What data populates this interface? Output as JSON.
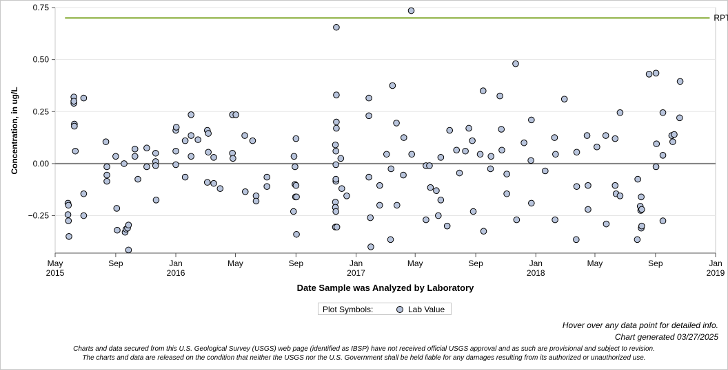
{
  "chart_data": {
    "type": "scatter",
    "xlabel": "Date Sample was Analyzed by Laboratory",
    "ylabel": "Concentration, in ug/L",
    "ylim": [
      -0.43,
      0.75
    ],
    "xlim": [
      "2015-05-01",
      "2019-01-01"
    ],
    "grid": true,
    "x_ticks": [
      {
        "date": "2015-05-01",
        "label": "May",
        "year": "2015"
      },
      {
        "date": "2015-09-01",
        "label": "Sep",
        "year": ""
      },
      {
        "date": "2016-01-01",
        "label": "Jan",
        "year": "2016"
      },
      {
        "date": "2016-05-01",
        "label": "May",
        "year": ""
      },
      {
        "date": "2016-09-01",
        "label": "Sep",
        "year": ""
      },
      {
        "date": "2017-01-01",
        "label": "Jan",
        "year": "2017"
      },
      {
        "date": "2017-05-01",
        "label": "May",
        "year": ""
      },
      {
        "date": "2017-09-01",
        "label": "Sep",
        "year": ""
      },
      {
        "date": "2018-01-01",
        "label": "Jan",
        "year": "2018"
      },
      {
        "date": "2018-05-01",
        "label": "May",
        "year": ""
      },
      {
        "date": "2018-09-01",
        "label": "Sep",
        "year": ""
      },
      {
        "date": "2019-01-01",
        "label": "Jan",
        "year": "2019"
      }
    ],
    "y_ticks": [
      {
        "value": 0.75,
        "label": "0.75"
      },
      {
        "value": 0.5,
        "label": "0.50"
      },
      {
        "value": 0.25,
        "label": "0.25"
      },
      {
        "value": 0.0,
        "label": "0.00"
      },
      {
        "value": -0.25,
        "label": "−0.25"
      }
    ],
    "reference_line": {
      "label": "RPT Level",
      "value": 0.7,
      "x_start": "2015-05-21",
      "x_end": "2018-12-20",
      "color": "#8db040"
    },
    "zero_line": 0.0,
    "series": [
      {
        "name": "Lab Value",
        "color": "#b8c4dc",
        "points": [
          [
            "2015-05-27",
            -0.19
          ],
          [
            "2015-05-27",
            -0.245
          ],
          [
            "2015-05-28",
            -0.275
          ],
          [
            "2015-05-28",
            -0.2
          ],
          [
            "2015-05-29",
            -0.35
          ],
          [
            "2015-06-08",
            0.32
          ],
          [
            "2015-06-08",
            0.29
          ],
          [
            "2015-06-08",
            0.3
          ],
          [
            "2015-06-09",
            0.19
          ],
          [
            "2015-06-09",
            0.18
          ],
          [
            "2015-06-11",
            0.06
          ],
          [
            "2015-06-28",
            0.315
          ],
          [
            "2015-06-28",
            -0.145
          ],
          [
            "2015-06-28",
            -0.25
          ],
          [
            "2015-08-12",
            0.105
          ],
          [
            "2015-08-14",
            -0.015
          ],
          [
            "2015-08-14",
            -0.055
          ],
          [
            "2015-08-14",
            -0.085
          ],
          [
            "2015-09-01",
            0.035
          ],
          [
            "2015-09-03",
            -0.215
          ],
          [
            "2015-09-04",
            -0.32
          ],
          [
            "2015-09-18",
            0.0
          ],
          [
            "2015-09-20",
            -0.33
          ],
          [
            "2015-09-22",
            -0.315
          ],
          [
            "2015-09-25",
            -0.31
          ],
          [
            "2015-09-27",
            -0.295
          ],
          [
            "2015-09-27",
            -0.415
          ],
          [
            "2015-10-10",
            0.07
          ],
          [
            "2015-10-10",
            0.035
          ],
          [
            "2015-10-16",
            -0.075
          ],
          [
            "2015-11-03",
            0.075
          ],
          [
            "2015-11-03",
            -0.015
          ],
          [
            "2015-11-21",
            0.05
          ],
          [
            "2015-11-21",
            0.01
          ],
          [
            "2015-11-21",
            -0.01
          ],
          [
            "2015-11-22",
            -0.175
          ],
          [
            "2016-01-01",
            0.16
          ],
          [
            "2016-01-02",
            0.175
          ],
          [
            "2016-01-01",
            0.06
          ],
          [
            "2016-01-01",
            -0.005
          ],
          [
            "2016-01-20",
            0.11
          ],
          [
            "2016-01-20",
            -0.065
          ],
          [
            "2016-02-01",
            0.235
          ],
          [
            "2016-02-01",
            0.135
          ],
          [
            "2016-02-01",
            0.035
          ],
          [
            "2016-02-15",
            0.115
          ],
          [
            "2016-03-05",
            0.16
          ],
          [
            "2016-03-07",
            0.145
          ],
          [
            "2016-03-07",
            0.055
          ],
          [
            "2016-03-05",
            -0.09
          ],
          [
            "2016-03-18",
            0.03
          ],
          [
            "2016-03-18",
            -0.095
          ],
          [
            "2016-03-31",
            -0.12
          ],
          [
            "2016-04-25",
            0.235
          ],
          [
            "2016-04-25",
            0.05
          ],
          [
            "2016-04-26",
            0.025
          ],
          [
            "2016-05-02",
            0.235
          ],
          [
            "2016-05-20",
            0.135
          ],
          [
            "2016-05-21",
            -0.135
          ],
          [
            "2016-06-05",
            0.11
          ],
          [
            "2016-06-12",
            -0.155
          ],
          [
            "2016-06-12",
            -0.18
          ],
          [
            "2016-07-04",
            -0.065
          ],
          [
            "2016-07-04",
            -0.11
          ],
          [
            "2016-08-28",
            0.035
          ],
          [
            "2016-08-27",
            -0.23
          ],
          [
            "2016-08-30",
            -0.015
          ],
          [
            "2016-08-30",
            -0.1
          ],
          [
            "2016-09-01",
            -0.105
          ],
          [
            "2016-08-31",
            -0.16
          ],
          [
            "2016-09-02",
            -0.16
          ],
          [
            "2016-09-01",
            0.12
          ],
          [
            "2016-09-02",
            -0.34
          ],
          [
            "2016-11-22",
            0.655
          ],
          [
            "2016-11-22",
            0.33
          ],
          [
            "2016-11-22",
            0.2
          ],
          [
            "2016-11-22",
            0.17
          ],
          [
            "2016-11-20",
            0.09
          ],
          [
            "2016-11-21",
            0.06
          ],
          [
            "2016-11-21",
            -0.005
          ],
          [
            "2016-11-21",
            -0.085
          ],
          [
            "2016-11-21",
            -0.075
          ],
          [
            "2016-11-20",
            -0.185
          ],
          [
            "2016-11-20",
            -0.21
          ],
          [
            "2016-11-21",
            -0.23
          ],
          [
            "2016-11-20",
            -0.305
          ],
          [
            "2016-11-23",
            -0.305
          ],
          [
            "2016-12-01",
            0.025
          ],
          [
            "2016-12-03",
            -0.12
          ],
          [
            "2016-12-13",
            -0.155
          ],
          [
            "2017-01-27",
            0.315
          ],
          [
            "2017-01-27",
            0.23
          ],
          [
            "2017-01-27",
            -0.065
          ],
          [
            "2017-01-30",
            -0.26
          ],
          [
            "2017-01-31",
            -0.4
          ],
          [
            "2017-02-18",
            -0.105
          ],
          [
            "2017-02-18",
            -0.2
          ],
          [
            "2017-03-04",
            0.045
          ],
          [
            "2017-03-16",
            0.375
          ],
          [
            "2017-03-13",
            -0.025
          ],
          [
            "2017-03-12",
            -0.365
          ],
          [
            "2017-03-24",
            0.195
          ],
          [
            "2017-03-25",
            -0.2
          ],
          [
            "2017-04-08",
            0.125
          ],
          [
            "2017-04-07",
            -0.055
          ],
          [
            "2017-04-23",
            0.735
          ],
          [
            "2017-04-24",
            0.045
          ],
          [
            "2017-05-23",
            -0.01
          ],
          [
            "2017-05-23",
            -0.27
          ],
          [
            "2017-05-30",
            -0.01
          ],
          [
            "2017-06-01",
            -0.115
          ],
          [
            "2017-06-13",
            -0.13
          ],
          [
            "2017-06-17",
            -0.25
          ],
          [
            "2017-06-22",
            0.03
          ],
          [
            "2017-06-22",
            -0.175
          ],
          [
            "2017-07-05",
            -0.3
          ],
          [
            "2017-07-10",
            0.16
          ],
          [
            "2017-07-24",
            0.065
          ],
          [
            "2017-07-30",
            -0.045
          ],
          [
            "2017-08-11",
            0.06
          ],
          [
            "2017-08-18",
            0.17
          ],
          [
            "2017-08-25",
            0.11
          ],
          [
            "2017-08-27",
            -0.23
          ],
          [
            "2017-09-10",
            0.045
          ],
          [
            "2017-09-16",
            0.35
          ],
          [
            "2017-09-17",
            -0.325
          ],
          [
            "2017-10-02",
            0.035
          ],
          [
            "2017-10-01",
            -0.025
          ],
          [
            "2017-10-20",
            0.325
          ],
          [
            "2017-10-23",
            0.165
          ],
          [
            "2017-10-24",
            0.065
          ],
          [
            "2017-11-03",
            -0.05
          ],
          [
            "2017-11-03",
            -0.145
          ],
          [
            "2017-11-21",
            0.48
          ],
          [
            "2017-11-23",
            -0.27
          ],
          [
            "2017-12-08",
            0.1
          ],
          [
            "2017-12-23",
            0.21
          ],
          [
            "2017-12-22",
            0.015
          ],
          [
            "2017-12-23",
            -0.19
          ],
          [
            "2018-01-20",
            -0.035
          ],
          [
            "2018-02-08",
            0.125
          ],
          [
            "2018-02-10",
            0.045
          ],
          [
            "2018-02-09",
            -0.27
          ],
          [
            "2018-02-28",
            0.31
          ],
          [
            "2018-03-25",
            0.055
          ],
          [
            "2018-03-25",
            -0.11
          ],
          [
            "2018-03-24",
            -0.365
          ],
          [
            "2018-04-15",
            0.135
          ],
          [
            "2018-04-17",
            -0.105
          ],
          [
            "2018-04-17",
            -0.22
          ],
          [
            "2018-05-05",
            0.08
          ],
          [
            "2018-05-23",
            0.135
          ],
          [
            "2018-05-24",
            -0.29
          ],
          [
            "2018-06-11",
            0.12
          ],
          [
            "2018-06-11",
            -0.105
          ],
          [
            "2018-06-13",
            -0.145
          ],
          [
            "2018-06-21",
            0.245
          ],
          [
            "2018-06-21",
            -0.155
          ],
          [
            "2018-07-27",
            -0.075
          ],
          [
            "2018-07-26",
            -0.365
          ],
          [
            "2018-08-01",
            -0.205
          ],
          [
            "2018-08-02",
            -0.225
          ],
          [
            "2018-08-03",
            -0.16
          ],
          [
            "2018-08-03",
            -0.31
          ],
          [
            "2018-08-04",
            -0.22
          ],
          [
            "2018-08-04",
            -0.3
          ],
          [
            "2018-08-19",
            0.43
          ],
          [
            "2018-09-02",
            0.435
          ],
          [
            "2018-09-03",
            0.095
          ],
          [
            "2018-09-02",
            -0.015
          ],
          [
            "2018-09-16",
            0.245
          ],
          [
            "2018-09-16",
            0.04
          ],
          [
            "2018-09-16",
            -0.275
          ],
          [
            "2018-10-04",
            0.135
          ],
          [
            "2018-10-06",
            0.105
          ],
          [
            "2018-10-09",
            0.14
          ],
          [
            "2018-10-21",
            0.395
          ],
          [
            "2018-10-20",
            0.22
          ]
        ]
      }
    ]
  },
  "legend": {
    "title": "Plot Symbols:",
    "label": "Lab Value"
  },
  "notes": {
    "hover": "Hover over any data point for detailed info.",
    "generated": "Chart generated 03/27/2025"
  },
  "disclaimer": {
    "line1": "Charts and data secured from this U.S. Geological Survey (USGS) web page (identified as IBSP) have not received official USGS approval and as such are provisional and subject to revision.",
    "line2": "The charts and data are released on the condition that neither the USGS nor the U.S. Government shall be held liable for any damages resulting from its authorized or unauthorized use."
  }
}
